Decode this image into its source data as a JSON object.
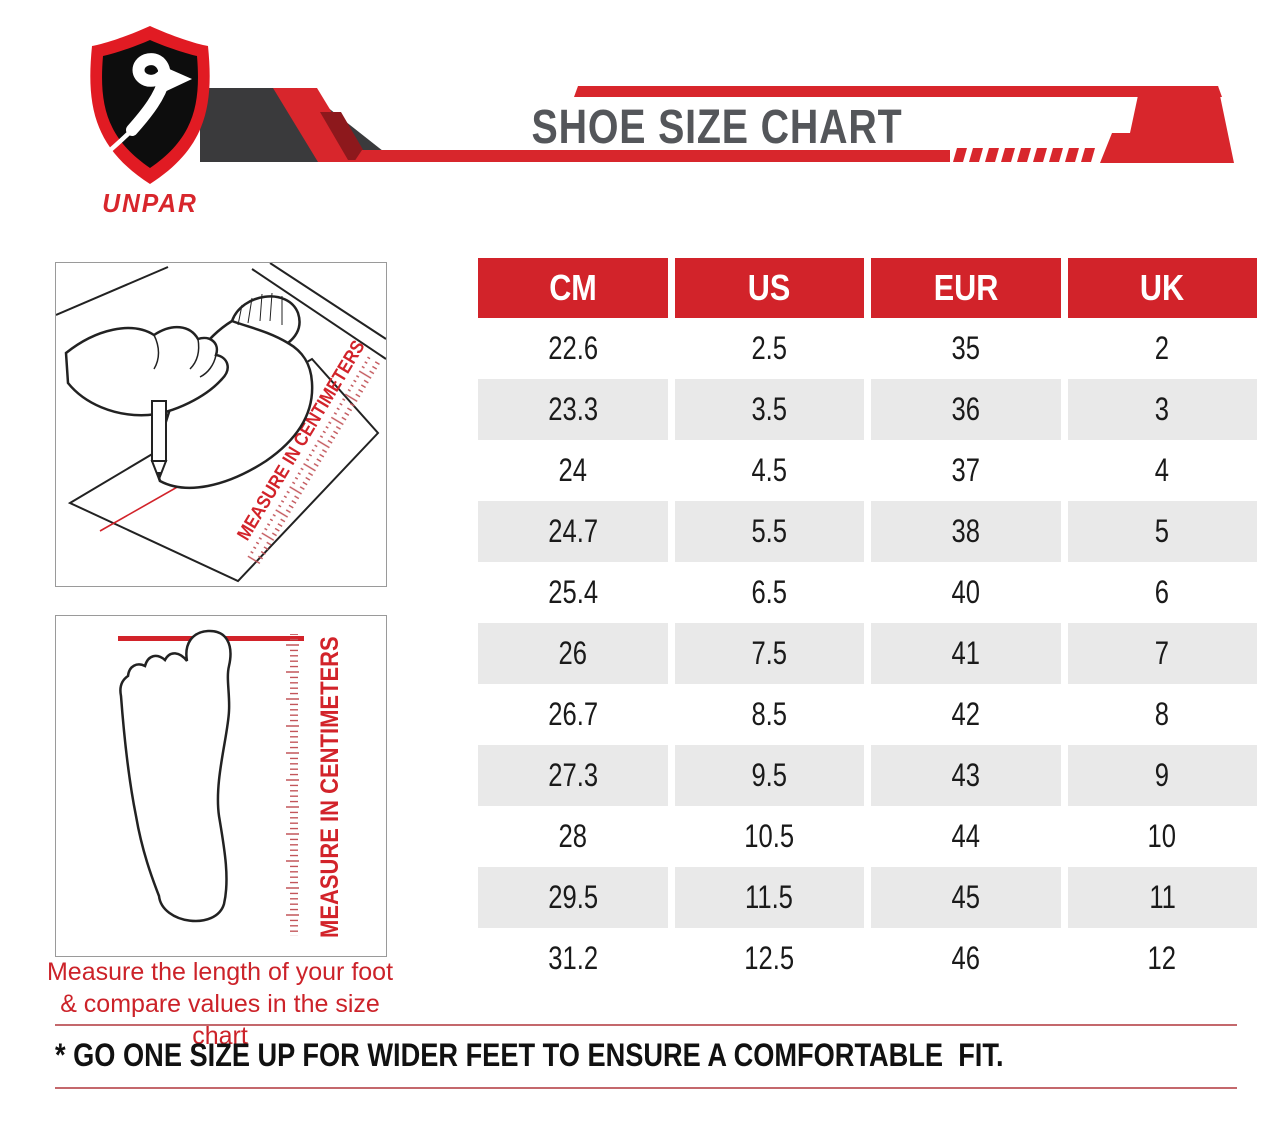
{
  "brand": {
    "name": "UNPAR",
    "logo_letter": "S"
  },
  "header": {
    "title": "SHOE SIZE CHART"
  },
  "illustrations": {
    "measuring": {
      "ruler_label": "MEASURE IN CENTIMETERS"
    },
    "footprint": {
      "ruler_label": "MEASURE IN CENTIMETERS"
    },
    "caption_line1": "Measure the length of your foot",
    "caption_line2": "& compare values in the size chart"
  },
  "size_table": {
    "columns": [
      "CM",
      "US",
      "EUR",
      "UK"
    ],
    "rows": [
      [
        "22.6",
        "2.5",
        "35",
        "2"
      ],
      [
        "23.3",
        "3.5",
        "36",
        "3"
      ],
      [
        "24",
        "4.5",
        "37",
        "4"
      ],
      [
        "24.7",
        "5.5",
        "38",
        "5"
      ],
      [
        "25.4",
        "6.5",
        "40",
        "6"
      ],
      [
        "26",
        "7.5",
        "41",
        "7"
      ],
      [
        "26.7",
        "8.5",
        "42",
        "8"
      ],
      [
        "27.3",
        "9.5",
        "43",
        "9"
      ],
      [
        "28",
        "10.5",
        "44",
        "10"
      ],
      [
        "29.5",
        "11.5",
        "45",
        "11"
      ],
      [
        "31.2",
        "12.5",
        "46",
        "12"
      ]
    ]
  },
  "footnote": "* GO ONE SIZE UP FOR WIDER FEET TO ENSURE A COMFORTABLE  FIT.",
  "colors": {
    "red": "#d2232a",
    "stripe_red": "#d8262c",
    "dark_red": "#8d181c",
    "charcoal": "#3a3a3c",
    "title_gray": "#54565a",
    "row_gray": "#e9e9e9",
    "line_rose": "#c4686c"
  },
  "chart_data": {
    "type": "table",
    "title": "SHOE SIZE CHART",
    "columns": [
      "CM",
      "US",
      "EUR",
      "UK"
    ],
    "rows": [
      [
        "22.6",
        "2.5",
        "35",
        "2"
      ],
      [
        "23.3",
        "3.5",
        "36",
        "3"
      ],
      [
        "24",
        "4.5",
        "37",
        "4"
      ],
      [
        "24.7",
        "5.5",
        "38",
        "5"
      ],
      [
        "25.4",
        "6.5",
        "40",
        "6"
      ],
      [
        "26",
        "7.5",
        "41",
        "7"
      ],
      [
        "26.7",
        "8.5",
        "42",
        "8"
      ],
      [
        "27.3",
        "9.5",
        "43",
        "9"
      ],
      [
        "28",
        "10.5",
        "44",
        "10"
      ],
      [
        "29.5",
        "11.5",
        "45",
        "11"
      ],
      [
        "31.2",
        "12.5",
        "46",
        "12"
      ]
    ],
    "footnote": "* GO ONE SIZE UP FOR WIDER FEET TO ENSURE A COMFORTABLE FIT."
  }
}
